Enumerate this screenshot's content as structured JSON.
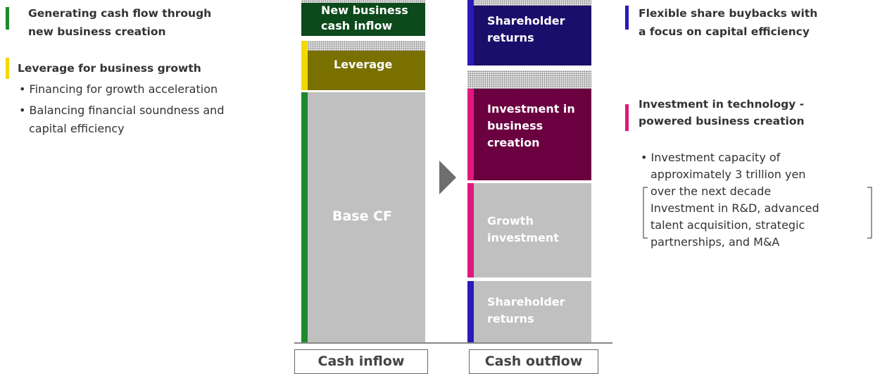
{
  "left_notes": [
    {
      "lines": [
        "Generating cash flow through",
        "new business creation"
      ],
      "bullets": []
    },
    {
      "lines": [
        "Leverage for business growth"
      ],
      "bullets": [
        [
          "Financing for growth acceleration"
        ],
        [
          "Balancing financial soundness and",
          "capital efficiency"
        ]
      ]
    }
  ],
  "inflow": {
    "blocks": [
      {
        "lines": [
          "New business",
          "cash inflow"
        ]
      },
      {
        "lines": [
          "Leverage"
        ]
      },
      {
        "lines": [
          "Base CF"
        ]
      }
    ],
    "label": "Cash inflow"
  },
  "outflow": {
    "blocks": [
      {
        "lines": [
          "Shareholder",
          "returns"
        ]
      },
      {
        "lines": [
          "Investment in",
          "business",
          "creation"
        ]
      },
      {
        "lines": [
          "Growth",
          "investment"
        ]
      },
      {
        "lines": [
          "Shareholder",
          "returns"
        ]
      }
    ],
    "label": "Cash outflow"
  },
  "right_notes": [
    {
      "lines": [
        "Flexible share buybacks with",
        "a focus on capital efficiency"
      ]
    },
    {
      "lines": [
        "Investment in technology -",
        "powered business creation"
      ],
      "bullet": [
        "Investment capacity of",
        "approximately 3 trillion yen",
        "over the next decade"
      ],
      "bracket": [
        "Investment in R&D, advanced",
        "talent acquisition, strategic",
        "partnerships, and M&A"
      ]
    }
  ]
}
